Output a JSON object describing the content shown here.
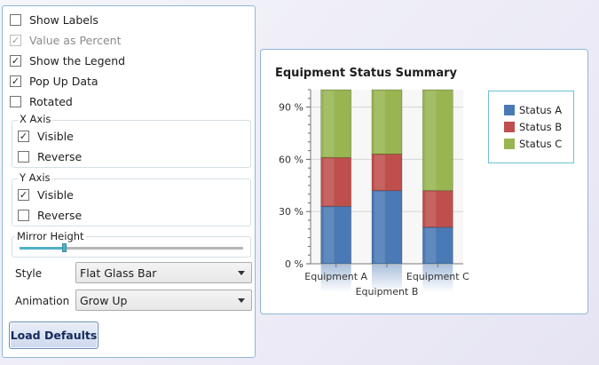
{
  "options": {
    "show_labels": {
      "label": "Show Labels",
      "checked": false,
      "enabled": true,
      "mark": ""
    },
    "value_as_percent": {
      "label": "Value as Percent",
      "checked": true,
      "enabled": false,
      "mark": "✓"
    },
    "show_legend": {
      "label": "Show the Legend",
      "checked": true,
      "enabled": true,
      "mark": "✓"
    },
    "popup_data": {
      "label": "Pop Up Data",
      "checked": true,
      "enabled": true,
      "mark": "✓"
    },
    "rotated": {
      "label": "Rotated",
      "checked": false,
      "enabled": true,
      "mark": ""
    }
  },
  "x_axis": {
    "title": "X Axis",
    "visible": {
      "label": "Visible",
      "checked": true,
      "mark": "✓"
    },
    "reverse": {
      "label": "Reverse",
      "checked": false,
      "mark": ""
    }
  },
  "y_axis": {
    "title": "Y Axis",
    "visible": {
      "label": "Visible",
      "checked": true,
      "mark": "✓"
    },
    "reverse": {
      "label": "Reverse",
      "checked": false,
      "mark": ""
    }
  },
  "mirror_height": {
    "title": "Mirror Height",
    "value_fraction": 0.2
  },
  "style": {
    "label": "Style",
    "value": "Flat Glass Bar"
  },
  "animation": {
    "label": "Animation",
    "value": "Grow Up"
  },
  "load_defaults_label": "Load Defaults",
  "colors": {
    "status_a": "#4a7ab5",
    "status_b": "#bf4f4d",
    "status_c": "#98b552",
    "accent": "#4fb0c6"
  },
  "chart_data": {
    "type": "bar",
    "stacked": true,
    "title": "Equipment Status Summary",
    "categories": [
      "Equipment A",
      "Equipment B",
      "Equipment C"
    ],
    "series": [
      {
        "name": "Status A",
        "values": [
          33,
          42,
          21
        ]
      },
      {
        "name": "Status B",
        "values": [
          28,
          21,
          21
        ]
      },
      {
        "name": "Status C",
        "values": [
          39,
          37,
          58
        ]
      }
    ],
    "ylim": [
      0,
      100
    ],
    "yticks": [
      0,
      30,
      60,
      90
    ],
    "ytick_labels": [
      "0 %",
      "30 %",
      "60 %",
      "90 %"
    ],
    "grid": true,
    "legend_position": "right"
  }
}
